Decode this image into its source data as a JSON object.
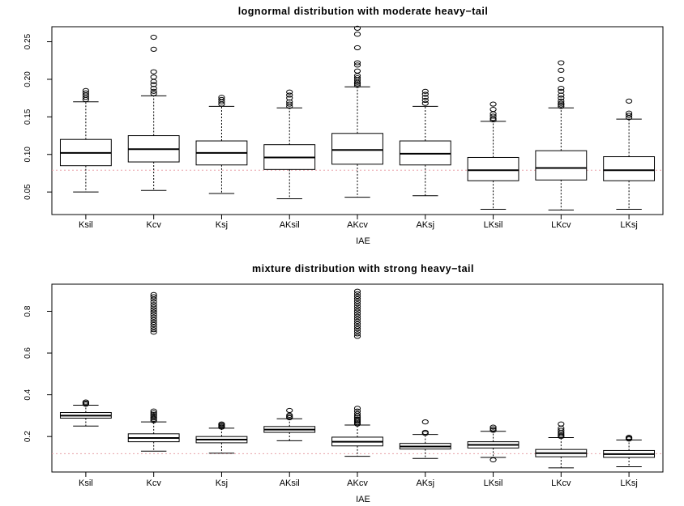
{
  "chart_data": [
    {
      "type": "box",
      "title": "lognormal distribution with moderate heavy−tail",
      "xlabel": "IAE",
      "ylabel": "",
      "categories": [
        "Ksil",
        "Kcv",
        "Ksj",
        "AKsil",
        "AKcv",
        "AKsj",
        "LKsil",
        "LKcv",
        "LKsj"
      ],
      "ylim": [
        0.02,
        0.27
      ],
      "yticks": [
        0.05,
        0.1,
        0.15,
        0.2,
        0.25
      ],
      "ytick_labels": [
        "0.05",
        "0.10",
        "0.15",
        "0.20",
        "0.25"
      ],
      "reference_line": {
        "y": 0.079,
        "color": "#e8a0a8",
        "style": "dotted"
      },
      "boxes": [
        {
          "min": 0.05,
          "q1": 0.085,
          "median": 0.102,
          "q3": 0.12,
          "max": 0.17,
          "outliers": [
            0.173,
            0.176,
            0.179,
            0.182,
            0.185
          ]
        },
        {
          "min": 0.052,
          "q1": 0.09,
          "median": 0.107,
          "q3": 0.125,
          "max": 0.178,
          "outliers": [
            0.181,
            0.184,
            0.188,
            0.193,
            0.197,
            0.203,
            0.21,
            0.24,
            0.256
          ]
        },
        {
          "min": 0.048,
          "q1": 0.086,
          "median": 0.102,
          "q3": 0.118,
          "max": 0.164,
          "outliers": [
            0.167,
            0.17,
            0.173,
            0.176
          ]
        },
        {
          "min": 0.041,
          "q1": 0.08,
          "median": 0.096,
          "q3": 0.113,
          "max": 0.162,
          "outliers": [
            0.164,
            0.167,
            0.17,
            0.175,
            0.179,
            0.183
          ]
        },
        {
          "min": 0.043,
          "q1": 0.087,
          "median": 0.106,
          "q3": 0.128,
          "max": 0.19,
          "outliers": [
            0.192,
            0.194,
            0.196,
            0.199,
            0.202,
            0.205,
            0.211,
            0.219,
            0.222,
            0.242,
            0.26,
            0.268
          ]
        },
        {
          "min": 0.045,
          "q1": 0.086,
          "median": 0.101,
          "q3": 0.118,
          "max": 0.164,
          "outliers": [
            0.168,
            0.172,
            0.176,
            0.18,
            0.184
          ]
        },
        {
          "min": 0.027,
          "q1": 0.065,
          "median": 0.079,
          "q3": 0.096,
          "max": 0.144,
          "outliers": [
            0.146,
            0.148,
            0.151,
            0.154,
            0.16,
            0.167
          ]
        },
        {
          "min": 0.026,
          "q1": 0.066,
          "median": 0.082,
          "q3": 0.105,
          "max": 0.162,
          "outliers": [
            0.164,
            0.166,
            0.168,
            0.171,
            0.175,
            0.179,
            0.184,
            0.188,
            0.2,
            0.212,
            0.222
          ]
        },
        {
          "min": 0.027,
          "q1": 0.065,
          "median": 0.079,
          "q3": 0.097,
          "max": 0.147,
          "outliers": [
            0.149,
            0.152,
            0.155,
            0.171
          ]
        }
      ]
    },
    {
      "type": "box",
      "title": "mixture distribution with strong heavy−tail",
      "xlabel": "IAE",
      "ylabel": "",
      "categories": [
        "Ksil",
        "Kcv",
        "Ksj",
        "AKsil",
        "AKcv",
        "AKsj",
        "LKsil",
        "LKcv",
        "LKsj"
      ],
      "ylim": [
        0.03,
        0.93
      ],
      "yticks": [
        0.2,
        0.4,
        0.6,
        0.8
      ],
      "ytick_labels": [
        "0.2",
        "0.4",
        "0.6",
        "0.8"
      ],
      "reference_line": {
        "y": 0.118,
        "color": "#e8a0a8",
        "style": "dotted"
      },
      "boxes": [
        {
          "min": 0.25,
          "q1": 0.288,
          "median": 0.3,
          "q3": 0.315,
          "max": 0.35,
          "outliers": [
            0.355,
            0.36,
            0.365
          ]
        },
        {
          "min": 0.13,
          "q1": 0.175,
          "median": 0.193,
          "q3": 0.213,
          "max": 0.27,
          "outliers": [
            0.276,
            0.283,
            0.29,
            0.298,
            0.305,
            0.313,
            0.322,
            0.7,
            0.712,
            0.724,
            0.736,
            0.748,
            0.76,
            0.772,
            0.784,
            0.796,
            0.808,
            0.82,
            0.832,
            0.845,
            0.858,
            0.87,
            0.88
          ]
        },
        {
          "min": 0.12,
          "q1": 0.17,
          "median": 0.185,
          "q3": 0.2,
          "max": 0.24,
          "outliers": [
            0.245,
            0.25,
            0.255,
            0.26
          ]
        },
        {
          "min": 0.18,
          "q1": 0.22,
          "median": 0.233,
          "q3": 0.248,
          "max": 0.285,
          "outliers": [
            0.29,
            0.296,
            0.302,
            0.325
          ]
        },
        {
          "min": 0.105,
          "q1": 0.155,
          "median": 0.175,
          "q3": 0.197,
          "max": 0.255,
          "outliers": [
            0.26,
            0.266,
            0.272,
            0.278,
            0.284,
            0.292,
            0.3,
            0.31,
            0.322,
            0.335,
            0.68,
            0.692,
            0.704,
            0.716,
            0.728,
            0.74,
            0.752,
            0.764,
            0.776,
            0.788,
            0.8,
            0.812,
            0.824,
            0.836,
            0.848,
            0.86,
            0.872,
            0.884,
            0.896
          ]
        },
        {
          "min": 0.095,
          "q1": 0.14,
          "median": 0.152,
          "q3": 0.167,
          "max": 0.21,
          "outliers": [
            0.215,
            0.22,
            0.27
          ]
        },
        {
          "min": 0.1,
          "q1": 0.145,
          "median": 0.16,
          "q3": 0.175,
          "max": 0.225,
          "outliers": [
            0.088,
            0.23,
            0.237,
            0.245
          ]
        },
        {
          "min": 0.05,
          "q1": 0.103,
          "median": 0.12,
          "q3": 0.138,
          "max": 0.195,
          "outliers": [
            0.2,
            0.205,
            0.212,
            0.22,
            0.23,
            0.24,
            0.26
          ]
        },
        {
          "min": 0.055,
          "q1": 0.1,
          "median": 0.116,
          "q3": 0.133,
          "max": 0.183,
          "outliers": [
            0.188,
            0.192,
            0.196
          ]
        }
      ]
    }
  ]
}
